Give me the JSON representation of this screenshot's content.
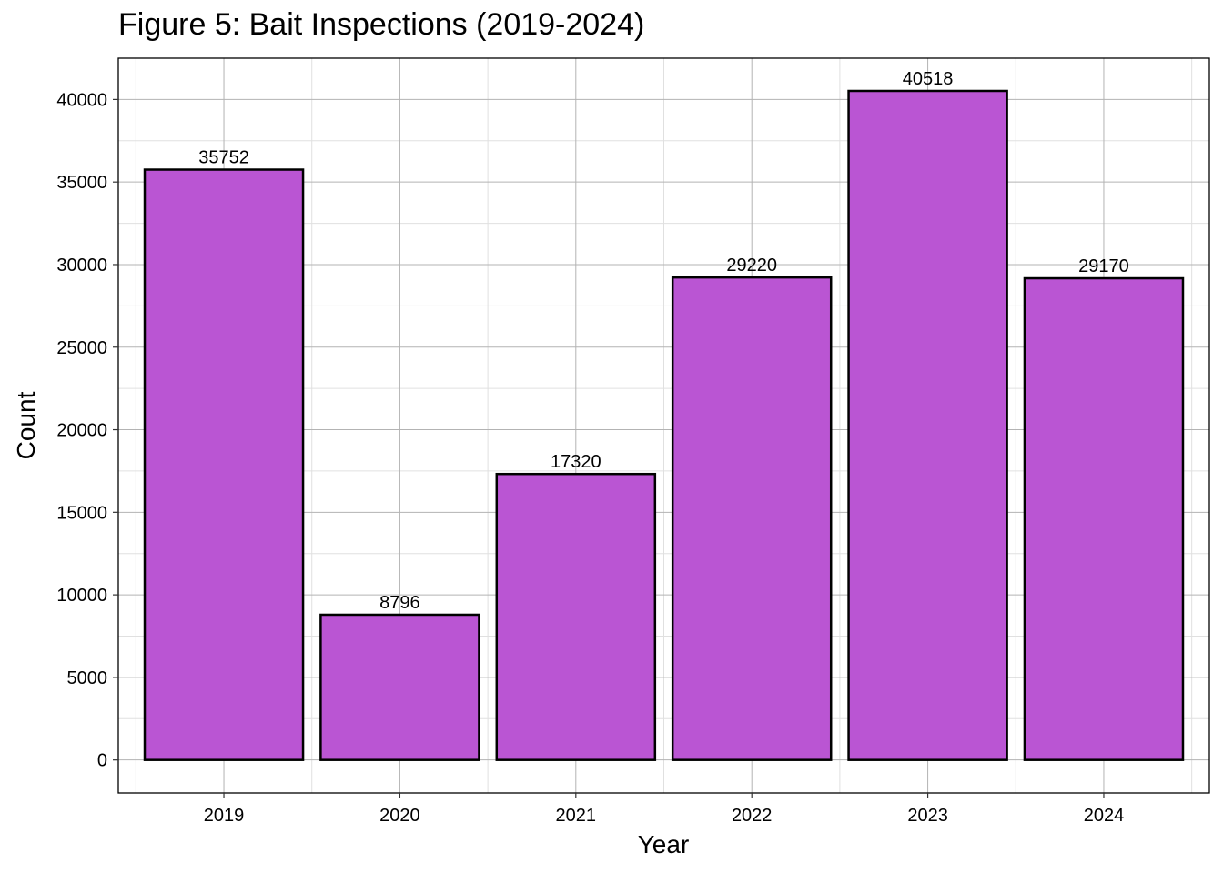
{
  "chart_data": {
    "type": "bar",
    "title": "Figure 5: Bait Inspections (2019-2024)",
    "xlabel": "Year",
    "ylabel": "Count",
    "categories": [
      "2019",
      "2020",
      "2021",
      "2022",
      "2023",
      "2024"
    ],
    "values": [
      35752,
      8796,
      17320,
      29220,
      40518,
      29170
    ],
    "data_labels": [
      "35752",
      "8796",
      "17320",
      "29220",
      "40518",
      "29170"
    ],
    "ylim": [
      -2000,
      42500
    ],
    "yticks": [
      0,
      5000,
      10000,
      15000,
      20000,
      25000,
      30000,
      35000,
      40000
    ],
    "ytick_labels": [
      "0",
      "5000",
      "10000",
      "15000",
      "20000",
      "25000",
      "30000",
      "35000",
      "40000"
    ],
    "grid": true,
    "legend": "none",
    "colors": {
      "bar_fill": "#ba55d3",
      "bar_stroke": "#000000",
      "grid_major": "#b3b3b3",
      "grid_minor": "#e0e0e0",
      "panel_border": "#000000"
    }
  }
}
